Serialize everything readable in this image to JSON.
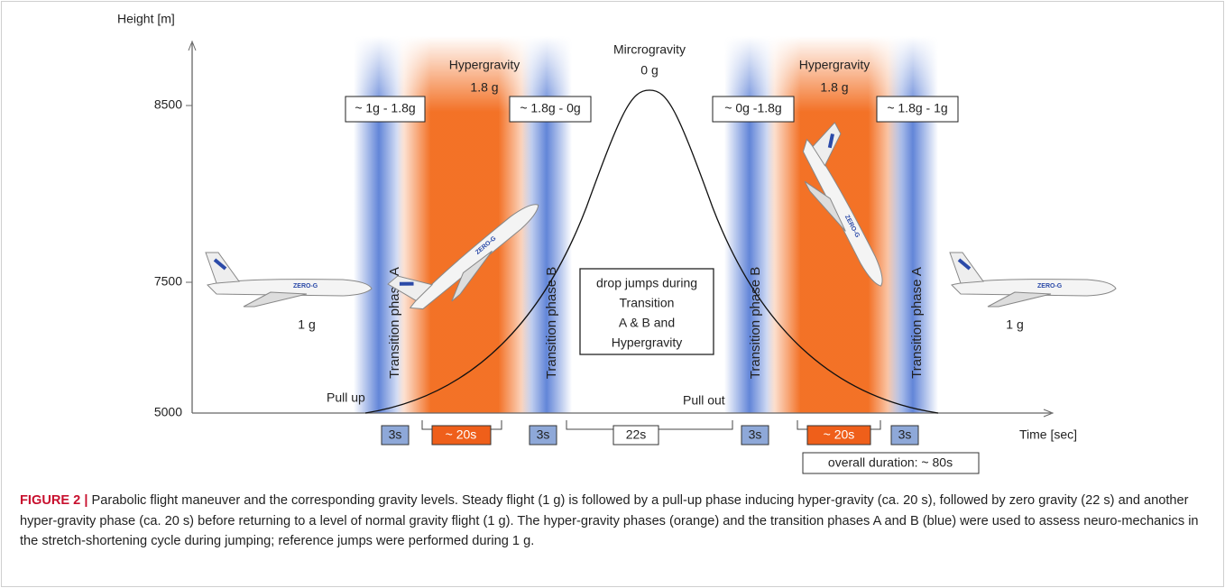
{
  "figure": {
    "y_label": "Height [m]",
    "x_label": "Time [sec]",
    "y_ticks": [
      "8500",
      "7500",
      "5000"
    ],
    "hyper_left": [
      "Hypergravity",
      "1.8 g"
    ],
    "micro": [
      "Mircrogravity",
      "0 g"
    ],
    "hyper_right": [
      "Hypergravity",
      "1.8 g"
    ],
    "transitions": [
      "~ 1g - 1.8g",
      "~ 1.8g - 0g",
      "~ 0g -1.8g",
      "~ 1.8g - 1g"
    ],
    "phase_labels": [
      "Transition phase A",
      "Transition phase B",
      "Transition phase B",
      "Transition phase A"
    ],
    "steady": [
      "1 g",
      "1 g"
    ],
    "pull_up": "Pull up",
    "pull_out": "Pull out",
    "plane_text": "ZERO-G",
    "note": [
      "drop jumps during",
      "Transition",
      "A & B and",
      "Hypergravity"
    ],
    "durations": [
      "3s",
      "~ 20s",
      "3s",
      "22s",
      "3s",
      "~ 20s",
      "3s"
    ],
    "overall": "overall duration: ~ 80s"
  },
  "caption": {
    "label": "FIGURE 2 |",
    "text": "Parabolic flight maneuver and the corresponding gravity levels. Steady flight (1 g) is followed by a pull-up phase inducing hyper-gravity (ca. 20 s), followed by zero gravity (22 s) and another hyper-gravity phase (ca. 20 s) before returning to a level of normal gravity flight (1 g). The hyper-gravity phases (orange) and the transition phases A and B (blue) were used to assess neuro-mechanics in the stretch-shortening cycle during jumping; reference jumps were performed during 1 g."
  }
}
